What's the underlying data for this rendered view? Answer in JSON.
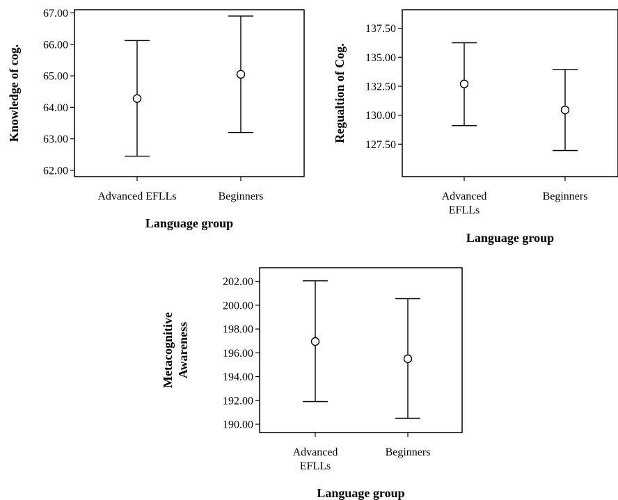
{
  "chart_data": [
    {
      "type": "errorbar",
      "categories": [
        "Advanced EFLLs",
        "Beginners"
      ],
      "category_labels": [
        [
          "Advanced EFLLs"
        ],
        [
          "Beginners"
        ]
      ],
      "mean": [
        64.28,
        65.05
      ],
      "lower": [
        62.45,
        63.2
      ],
      "upper": [
        66.12,
        66.9
      ],
      "title": "",
      "xlabel": "Language group",
      "ylabel": [
        "Knowledge of cog."
      ],
      "ylim": [
        61.8,
        67.1
      ],
      "ticks": [
        62.0,
        63.0,
        64.0,
        65.0,
        66.0,
        67.0
      ],
      "tick_labels": [
        "62.00",
        "63.00",
        "64.00",
        "65.00",
        "66.00",
        "67.00"
      ]
    },
    {
      "type": "errorbar",
      "categories": [
        "Advanced EFLLs",
        "Beginners"
      ],
      "category_labels": [
        [
          "Advanced",
          "EFLLs"
        ],
        [
          "Beginners"
        ]
      ],
      "mean": [
        132.7,
        130.45
      ],
      "lower": [
        129.1,
        126.95
      ],
      "upper": [
        136.25,
        133.95
      ],
      "title": "",
      "xlabel": "Language group",
      "ylabel": [
        "Regualtion of Cog."
      ],
      "ylim": [
        124.7,
        139.1
      ],
      "ticks": [
        127.5,
        130.0,
        132.5,
        135.0,
        137.5
      ],
      "tick_labels": [
        "127.50",
        "130.00",
        "132.50",
        "135.00",
        "137.50"
      ]
    },
    {
      "type": "errorbar",
      "categories": [
        "Advanced EFLLs",
        "Beginners"
      ],
      "category_labels": [
        [
          "Advanced",
          "EFLLs"
        ],
        [
          "Beginners"
        ]
      ],
      "mean": [
        196.95,
        195.5
      ],
      "lower": [
        191.9,
        190.5
      ],
      "upper": [
        202.05,
        200.55
      ],
      "title": "",
      "xlabel": "Language group",
      "ylabel": [
        "Metacognitive",
        "Awareness"
      ],
      "ylim": [
        189.3,
        203.15
      ],
      "ticks": [
        190.0,
        192.0,
        194.0,
        196.0,
        198.0,
        200.0,
        202.0
      ],
      "tick_labels": [
        "190.00",
        "192.00",
        "194.00",
        "196.00",
        "198.00",
        "200.00",
        "202.00"
      ]
    }
  ]
}
